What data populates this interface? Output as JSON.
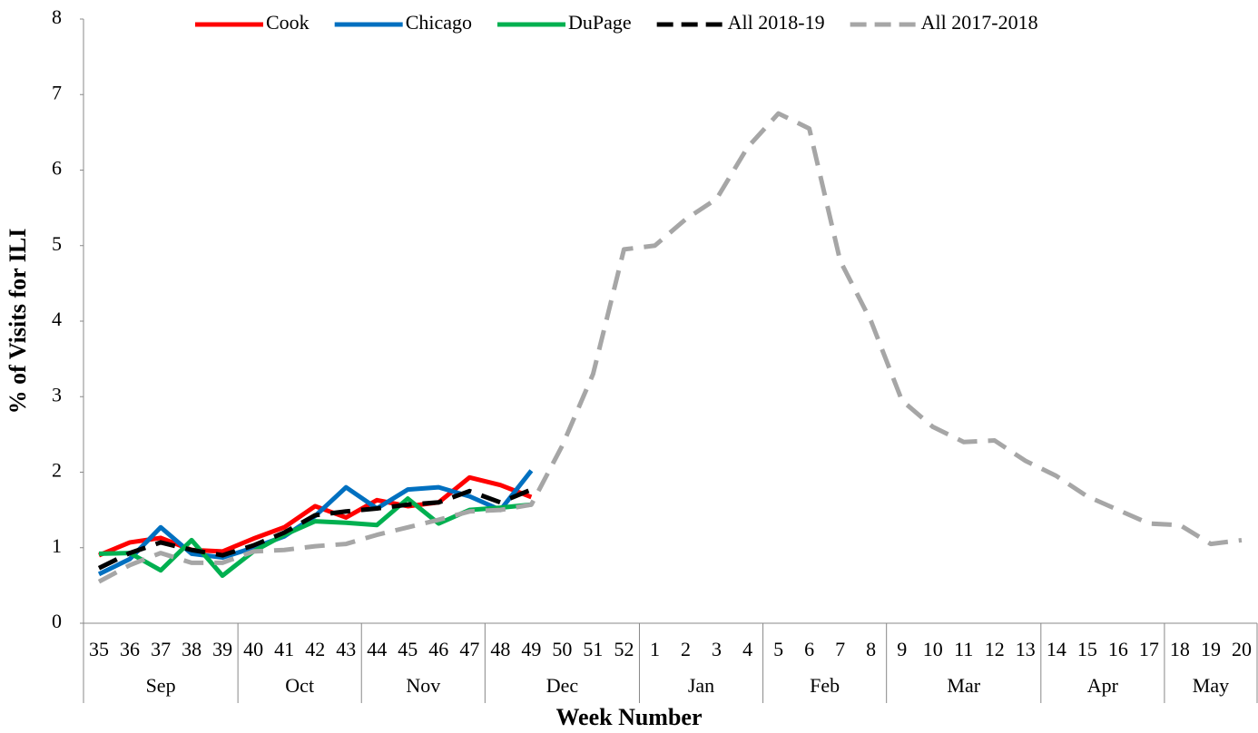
{
  "chart_data": {
    "type": "line",
    "x_label": "Week Number",
    "y_label": "% of Visits for ILI",
    "categories": [
      "35",
      "36",
      "37",
      "38",
      "39",
      "40",
      "41",
      "42",
      "43",
      "44",
      "45",
      "46",
      "47",
      "48",
      "49",
      "50",
      "51",
      "52",
      "1",
      "2",
      "3",
      "4",
      "5",
      "6",
      "7",
      "8",
      "9",
      "10",
      "11",
      "12",
      "13",
      "14",
      "15",
      "16",
      "17",
      "18",
      "19",
      "20"
    ],
    "x_groups": [
      {
        "label": "Sep",
        "span": 5
      },
      {
        "label": "Oct",
        "span": 4
      },
      {
        "label": "Nov",
        "span": 4
      },
      {
        "label": "Dec",
        "span": 5
      },
      {
        "label": "Jan",
        "span": 4
      },
      {
        "label": "Feb",
        "span": 4
      },
      {
        "label": "Mar",
        "span": 5
      },
      {
        "label": "Apr",
        "span": 4
      },
      {
        "label": "May",
        "span": 3
      }
    ],
    "ylim": [
      0,
      8
    ],
    "yticks": [
      0,
      1,
      2,
      3,
      4,
      5,
      6,
      7,
      8
    ],
    "legend": "top",
    "series": [
      {
        "name": "Cook",
        "color": "#ff0000",
        "dashed": false,
        "values": [
          0.9,
          1.07,
          1.13,
          0.97,
          0.95,
          1.12,
          1.27,
          1.55,
          1.4,
          1.63,
          1.55,
          1.6,
          1.93,
          1.83,
          1.67,
          null,
          null,
          null,
          null,
          null,
          null,
          null,
          null,
          null,
          null,
          null,
          null,
          null,
          null,
          null,
          null,
          null,
          null,
          null,
          null,
          null,
          null,
          null
        ]
      },
      {
        "name": "Chicago",
        "color": "#0070c0",
        "dashed": false,
        "values": [
          0.65,
          0.85,
          1.27,
          0.92,
          0.87,
          1.0,
          1.15,
          1.42,
          1.8,
          1.52,
          1.77,
          1.8,
          1.68,
          1.5,
          2.02,
          null,
          null,
          null,
          null,
          null,
          null,
          null,
          null,
          null,
          null,
          null,
          null,
          null,
          null,
          null,
          null,
          null,
          null,
          null,
          null,
          null,
          null,
          null
        ]
      },
      {
        "name": "DuPage",
        "color": "#00b050",
        "dashed": false,
        "values": [
          0.92,
          0.93,
          0.7,
          1.1,
          0.63,
          0.95,
          1.17,
          1.35,
          1.33,
          1.3,
          1.65,
          1.32,
          1.5,
          1.53,
          1.57,
          null,
          null,
          null,
          null,
          null,
          null,
          null,
          null,
          null,
          null,
          null,
          null,
          null,
          null,
          null,
          null,
          null,
          null,
          null,
          null,
          null,
          null,
          null
        ]
      },
      {
        "name": "All 2018-19",
        "color": "#000000",
        "dashed": true,
        "values": [
          0.73,
          0.93,
          1.07,
          0.97,
          0.9,
          1.03,
          1.2,
          1.43,
          1.48,
          1.52,
          1.57,
          1.6,
          1.75,
          1.6,
          1.77,
          null,
          null,
          null,
          null,
          null,
          null,
          null,
          null,
          null,
          null,
          null,
          null,
          null,
          null,
          null,
          null,
          null,
          null,
          null,
          null,
          null,
          null,
          null
        ]
      },
      {
        "name": "All 2017-2018",
        "color": "#a6a6a6",
        "dashed": true,
        "values": [
          0.55,
          0.77,
          0.93,
          0.8,
          0.8,
          0.95,
          0.97,
          1.02,
          1.05,
          1.17,
          1.27,
          1.37,
          1.48,
          1.5,
          1.57,
          2.35,
          3.3,
          4.95,
          5.0,
          5.35,
          5.62,
          6.3,
          6.75,
          6.55,
          4.8,
          4.0,
          2.95,
          2.6,
          2.4,
          2.42,
          2.15,
          1.95,
          1.68,
          1.5,
          1.32,
          1.3,
          1.05,
          1.1
        ]
      }
    ]
  }
}
